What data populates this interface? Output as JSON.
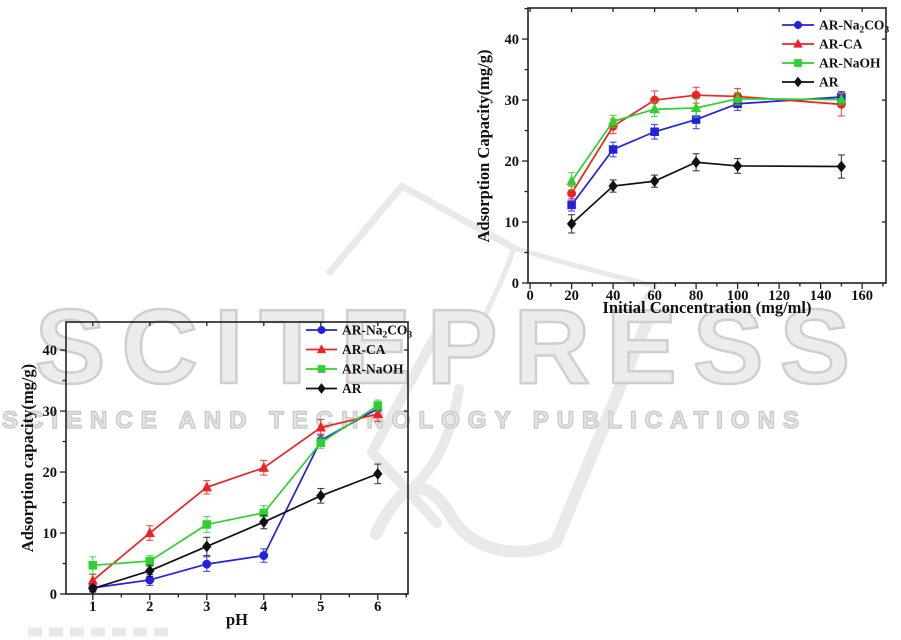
{
  "background": "#ffffff",
  "watermark": {
    "line1": "SCITEPRESS",
    "line2": "SCIENCE AND TECHNOLOGY PUBLICATIONS",
    "text_color": "#cfcfcf",
    "shape_color": "#e9e9e9"
  },
  "chart_data": [
    {
      "id": "initial-concentration",
      "type": "line",
      "title": "",
      "xlabel": "Initial Concentration (mg/ml)",
      "ylabel": "Adsorption Capacity(mg/g)",
      "xlim": [
        -1,
        171.5
      ],
      "ylim": [
        0,
        45.1
      ],
      "xticks": [
        0,
        20,
        40,
        60,
        80,
        100,
        120,
        140,
        160
      ],
      "yticks": [
        0,
        10,
        20,
        30,
        40
      ],
      "x_minor_step": 10,
      "y_minor_step": 5,
      "grid": false,
      "legend_position": "top-right",
      "x": [
        20,
        40,
        60,
        80,
        100,
        150
      ],
      "series": [
        {
          "key": "ar-na2co3",
          "label": "AR-Na₂CO₃",
          "color": "#2222dd",
          "marker": "square",
          "legend_marker": "circle",
          "values": [
            12.8,
            21.9,
            24.8,
            26.8,
            29.4,
            30.5
          ],
          "errors": [
            1.0,
            1.2,
            1.2,
            1.5,
            1.1,
            0.9
          ]
        },
        {
          "key": "ar-ca",
          "label": "AR-CA",
          "color": "#ee2222",
          "marker": "circle",
          "legend_marker": "triangle",
          "values": [
            14.7,
            25.7,
            30.0,
            30.8,
            30.6,
            29.3
          ],
          "errors": [
            1.2,
            1.2,
            1.5,
            1.3,
            1.3,
            1.9
          ]
        },
        {
          "key": "ar-naoh",
          "label": "AR-NaOH",
          "color": "#30d030",
          "marker": "triangle",
          "legend_marker": "square",
          "values": [
            16.7,
            26.5,
            28.5,
            28.7,
            30.2,
            30.1
          ],
          "errors": [
            1.4,
            1.0,
            1.2,
            1.5,
            1.0,
            0.9
          ]
        },
        {
          "key": "ar",
          "label": "AR",
          "color": "#111111",
          "marker": "diamond",
          "legend_marker": "diamond",
          "values": [
            9.7,
            15.9,
            16.7,
            19.8,
            19.2,
            19.1
          ],
          "errors": [
            1.5,
            1.0,
            1.0,
            1.4,
            1.2,
            1.9
          ]
        }
      ]
    },
    {
      "id": "ph",
      "type": "line",
      "title": "",
      "xlabel": "pH",
      "ylabel": "Adsorption capacity(mg/g)",
      "xlim": [
        0.53,
        6.53
      ],
      "ylim": [
        0,
        44.6
      ],
      "xticks": [
        1,
        2,
        3,
        4,
        5,
        6
      ],
      "yticks": [
        0,
        10,
        20,
        30,
        40
      ],
      "x_minor_step": 0.5,
      "y_minor_step": 5,
      "grid": false,
      "legend_position": "top-right",
      "x": [
        1,
        2,
        3,
        4,
        5,
        6
      ],
      "series": [
        {
          "key": "ar-na2co3",
          "label": "AR-Na₂CO₃",
          "color": "#2222dd",
          "marker": "circle",
          "legend_marker": "circle",
          "values": [
            1.0,
            2.3,
            4.9,
            6.3,
            25.2,
            30.4
          ],
          "errors": [
            0.7,
            0.9,
            1.2,
            1.1,
            1.0,
            1.1
          ]
        },
        {
          "key": "ar-ca",
          "label": "AR-CA",
          "color": "#ee2222",
          "marker": "triangle",
          "legend_marker": "triangle",
          "values": [
            2.2,
            10.0,
            17.5,
            20.7,
            27.3,
            29.5
          ],
          "errors": [
            1.0,
            1.2,
            1.1,
            1.2,
            1.3,
            1.2
          ]
        },
        {
          "key": "ar-naoh",
          "label": "AR-NaOH",
          "color": "#30d030",
          "marker": "square",
          "legend_marker": "square",
          "values": [
            4.7,
            5.4,
            11.4,
            13.3,
            24.8,
            30.9
          ],
          "errors": [
            1.4,
            0.9,
            1.3,
            1.2,
            0.9,
            0.9
          ]
        },
        {
          "key": "ar",
          "label": "AR",
          "color": "#111111",
          "marker": "diamond",
          "legend_marker": "diamond",
          "values": [
            0.9,
            3.8,
            7.8,
            11.8,
            16.1,
            19.7
          ],
          "errors": [
            0.5,
            0.9,
            1.5,
            1.1,
            1.2,
            1.6
          ]
        }
      ]
    }
  ]
}
